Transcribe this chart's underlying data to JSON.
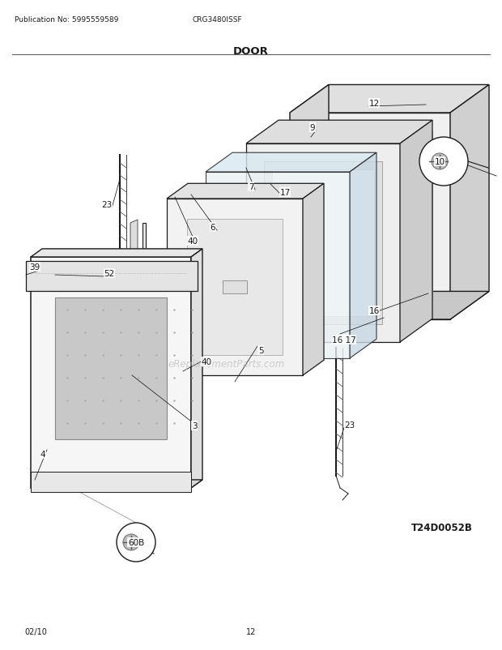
{
  "title": "DOOR",
  "pub_no": "Publication No: 5995559589",
  "model": "CRG3480ISSF",
  "diagram_id": "T24D0052B",
  "date": "02/10",
  "page": "12",
  "bg_color": "#ffffff",
  "lc": "#1a1a1a",
  "watermark": "eReplacementParts.com",
  "gray_fill": "#e8e8e8",
  "light_fill": "#f4f4f4",
  "medium_fill": "#d8d8d8"
}
